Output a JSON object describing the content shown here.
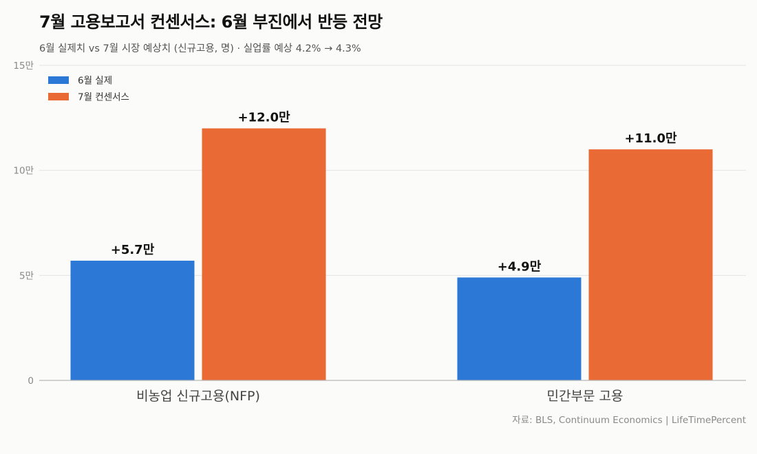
{
  "chart_data": {
    "type": "bar",
    "title": "7월 고용보고서 컨센서스: 6월 부진에서 반등 전망",
    "subtitle": "6월 실제치 vs 7월 시장 예상치 (신규고용, 명)  ·  실업률 예상 4.2% → 4.3%",
    "source": "자료: BLS, Continuum Economics  |  LifeTimePercent",
    "categories": [
      "비농업 신규고용(NFP)",
      "민간부문 고용"
    ],
    "series": [
      {
        "name": "6월 실제",
        "color": "#2b78d6",
        "values": [
          57000,
          49000
        ],
        "labels": [
          "+5.7만",
          "+4.9만"
        ]
      },
      {
        "name": "7월 컨센서스",
        "color": "#ea6a35",
        "values": [
          120000,
          110000
        ],
        "labels": [
          "+12.0만",
          "+11.0만"
        ]
      }
    ],
    "yticks": [
      {
        "value": 0,
        "label": "0"
      },
      {
        "value": 50000,
        "label": "5만"
      },
      {
        "value": 100000,
        "label": "10만"
      },
      {
        "value": 150000,
        "label": "15만"
      }
    ],
    "ylim": [
      0,
      150000
    ],
    "grid": true,
    "legend_position": "top-left"
  }
}
